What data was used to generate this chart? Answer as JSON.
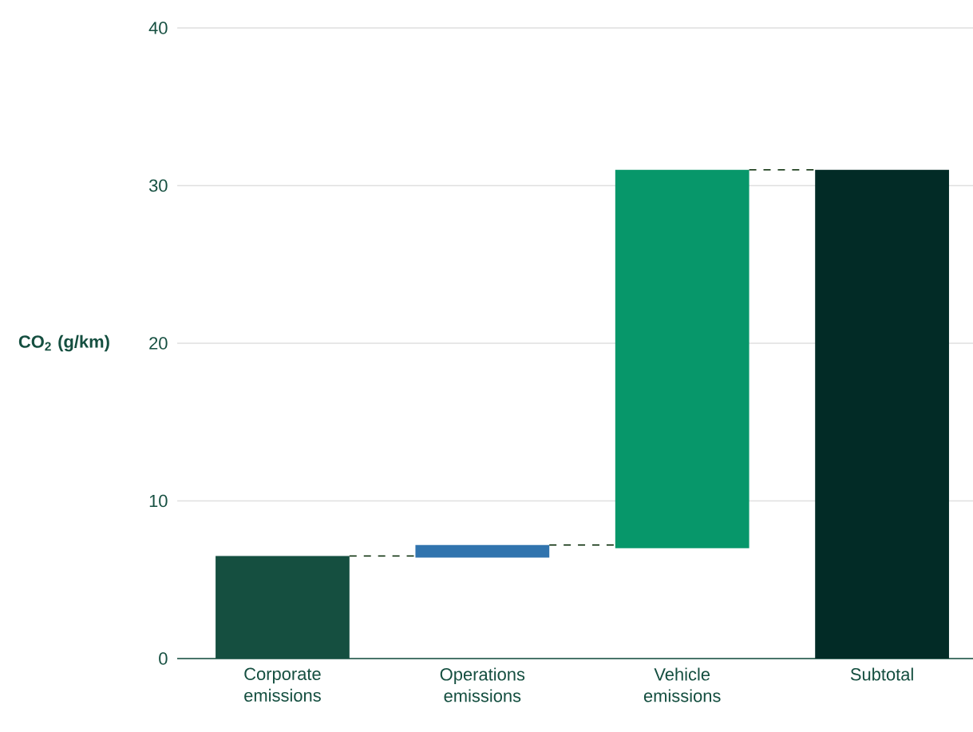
{
  "chart_data": {
    "type": "bar",
    "ylabel": "CO$_{2}$ (g/km)",
    "categories": [
      "Corporate emissions",
      "Operations emissions",
      "Vehicle emissions",
      "Subtotal"
    ],
    "values": [
      6.5,
      0.8,
      24,
      31
    ],
    "base": [
      0,
      6.4,
      7,
      0
    ],
    "colors": [
      "#154f40",
      "#3174ae",
      "#07976a",
      "#022b26"
    ],
    "ylim": [
      0,
      40
    ],
    "yticks": [
      0,
      10,
      20,
      30,
      40
    ],
    "grid": "y"
  }
}
